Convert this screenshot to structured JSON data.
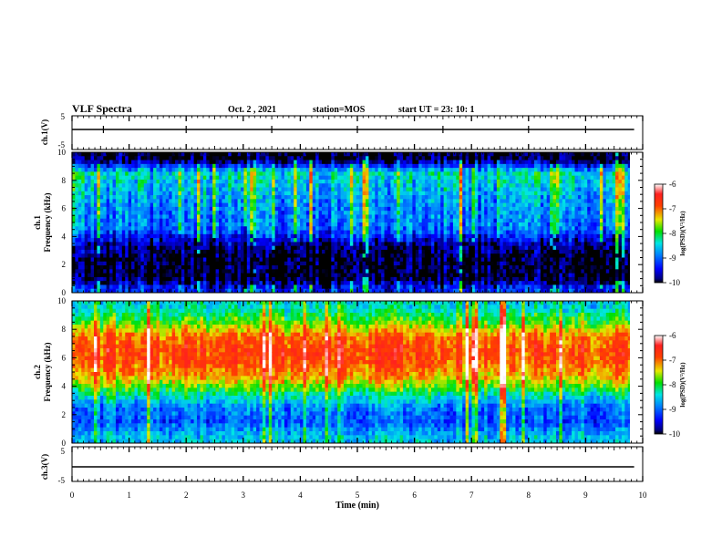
{
  "header": {
    "title": "VLF Spectra",
    "date": "Oct. 2 , 2021",
    "station": "station=MOS",
    "start": "start UT =  23: 10: 1"
  },
  "chart_data": [
    {
      "type": "line",
      "panel": "ch1-waveform",
      "ylabel": "ch.1(V)",
      "ylim": [
        -5,
        5
      ],
      "yticks": [
        "5",
        "-5"
      ],
      "xlim": [
        0,
        10
      ],
      "series": [
        {
          "x": [
            0,
            9.85
          ],
          "y": [
            0,
            0
          ]
        }
      ]
    },
    {
      "type": "heatmap",
      "panel": "ch1-spectrogram",
      "ylabel": "ch.1\nFrequency (kHz)",
      "ylim": [
        0,
        10
      ],
      "yticks": [
        "0",
        "2",
        "4",
        "6",
        "8",
        "10"
      ],
      "xlim": [
        0,
        10
      ],
      "data_xmax": 9.85,
      "colorbar": {
        "label": "log(PSD)(V²/Hz)",
        "min": -10,
        "max": -6,
        "ticks": [
          "-6",
          "-7",
          "-8",
          "-9",
          "-10"
        ]
      },
      "typical_log_psd": [
        {
          "freq_khz": 0.25,
          "value": -9.3
        },
        {
          "freq_khz": 1.0,
          "value": -10
        },
        {
          "freq_khz": 2.5,
          "value": -10
        },
        {
          "freq_khz": 3.5,
          "value": -9.7
        },
        {
          "freq_khz": 4.5,
          "value": -9.0
        },
        {
          "freq_khz": 5.5,
          "value": -8.9
        },
        {
          "freq_khz": 6.5,
          "value": -8.8
        },
        {
          "freq_khz": 7.5,
          "value": -8.6
        },
        {
          "freq_khz": 8.5,
          "value": -8.4
        },
        {
          "freq_khz": 9.5,
          "value": -10
        }
      ]
    },
    {
      "type": "heatmap",
      "panel": "ch2-spectrogram",
      "ylabel": "ch.2\nFrequency (kHz)",
      "ylim": [
        0,
        10
      ],
      "yticks": [
        "0",
        "2",
        "4",
        "6",
        "8",
        "10"
      ],
      "xlim": [
        0,
        10
      ],
      "data_xmax": 9.85,
      "colorbar": {
        "label": "log(PSD)(V²/Hz)",
        "min": -10,
        "max": -6,
        "ticks": [
          "-6",
          "-7",
          "-8",
          "-9",
          "-10"
        ]
      },
      "typical_log_psd": [
        {
          "freq_khz": 0.5,
          "value": -8.6
        },
        {
          "freq_khz": 1.5,
          "value": -9.1
        },
        {
          "freq_khz": 2.5,
          "value": -8.9
        },
        {
          "freq_khz": 3.5,
          "value": -8.2
        },
        {
          "freq_khz": 4.5,
          "value": -7.3
        },
        {
          "freq_khz": 5.5,
          "value": -6.9
        },
        {
          "freq_khz": 6.5,
          "value": -6.8
        },
        {
          "freq_khz": 7.5,
          "value": -7.0
        },
        {
          "freq_khz": 8.5,
          "value": -7.8
        },
        {
          "freq_khz": 9.5,
          "value": -8.4
        }
      ]
    },
    {
      "type": "line",
      "panel": "ch3-waveform",
      "ylabel": "ch.3(V)",
      "ylim": [
        -5,
        5
      ],
      "yticks": [
        "5",
        "-5"
      ],
      "xlim": [
        0,
        10
      ],
      "xlabel": "Time (min)",
      "xticks": [
        "0",
        "1",
        "2",
        "3",
        "4",
        "5",
        "6",
        "7",
        "8",
        "9",
        "10"
      ],
      "series": [
        {
          "x": [
            0,
            9.85
          ],
          "y": [
            0,
            0
          ]
        }
      ]
    }
  ]
}
